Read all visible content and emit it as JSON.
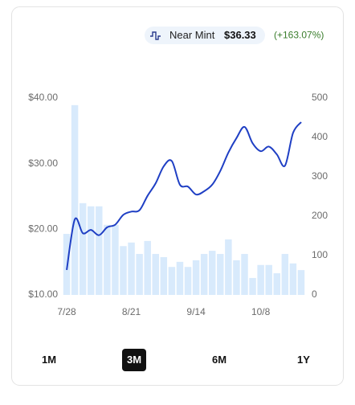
{
  "chart_data": {
    "type": "combo",
    "legend": {
      "name": "Near Mint",
      "price": "$36.33",
      "change": "(+163.07%)",
      "change_color": "#3a7d2c"
    },
    "categories": [
      "7/28",
      null,
      null,
      null,
      null,
      null,
      null,
      null,
      "8/21",
      null,
      null,
      null,
      null,
      null,
      null,
      null,
      "9/14",
      null,
      null,
      null,
      null,
      null,
      null,
      null,
      "10/8",
      null,
      null,
      null,
      null,
      null
    ],
    "series": [
      {
        "type": "bar",
        "axis": "y2",
        "color": "#d8eafc",
        "values": [
          155,
          482,
          233,
          225,
          225,
          178,
          178,
          124,
          133,
          104,
          137,
          104,
          96,
          71,
          84,
          71,
          88,
          104,
          112,
          104,
          141,
          88,
          104,
          43,
          76,
          76,
          55,
          104,
          80,
          63
        ]
      },
      {
        "type": "line",
        "name": "Near Mint",
        "color": "#1f3fc4",
        "values": [
          13.8,
          21.5,
          19.4,
          19.9,
          19.1,
          20.3,
          20.7,
          22.2,
          22.7,
          22.9,
          25.1,
          27.0,
          29.6,
          30.4,
          26.8,
          26.5,
          25.3,
          25.8,
          26.8,
          28.9,
          31.7,
          33.9,
          35.6,
          33.1,
          31.9,
          32.6,
          31.4,
          29.7,
          34.7,
          36.33
        ]
      }
    ],
    "ylim": [
      10,
      40
    ],
    "yticks": [
      {
        "value": 10,
        "label": "$10.00"
      },
      {
        "value": 20,
        "label": "$20.00"
      },
      {
        "value": 30,
        "label": "$30.00"
      },
      {
        "value": 40,
        "label": "$40.00"
      }
    ],
    "y2lim": [
      0,
      500
    ],
    "y2ticks": [
      0,
      100,
      200,
      300,
      400,
      500
    ],
    "ranges": [
      "1M",
      "3M",
      "6M",
      "1Y"
    ],
    "selected_range": 1
  }
}
